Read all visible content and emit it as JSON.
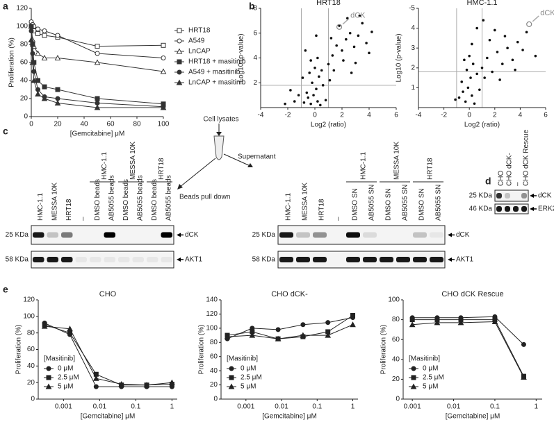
{
  "panel_labels": [
    "a",
    "b",
    "c",
    "d",
    "e"
  ],
  "chart_data": [
    {
      "type": "line",
      "x": [
        0,
        1,
        2,
        5,
        10,
        20,
        50,
        100
      ],
      "xlim": [
        0,
        100
      ],
      "xticks": [
        0,
        20,
        40,
        60,
        80,
        100
      ],
      "ylim": [
        0,
        120
      ],
      "yticks": [
        0,
        20,
        40,
        60,
        80,
        100,
        120
      ],
      "xlabel": "[Gemcitabine] μM",
      "ylabel": "Proliferation (%)",
      "legend": "right",
      "series": [
        {
          "name": "HRT18",
          "color": "#333333",
          "marker": "square",
          "filled": false,
          "values": [
            100,
            98,
            95,
            92,
            90,
            88,
            78,
            79
          ]
        },
        {
          "name": "A549",
          "color": "#333333",
          "marker": "circle",
          "filled": false,
          "values": [
            105,
            102,
            100,
            97,
            95,
            90,
            70,
            65
          ]
        },
        {
          "name": "LnCAP",
          "color": "#333333",
          "marker": "triangle",
          "filled": false,
          "values": [
            100,
            85,
            78,
            70,
            65,
            65,
            60,
            50
          ]
        },
        {
          "name": "HRT18 + masitinib",
          "color": "#333333",
          "marker": "square",
          "filled": true,
          "values": [
            100,
            80,
            60,
            40,
            33,
            30,
            20,
            14
          ]
        },
        {
          "name": "A549 + masitinib",
          "color": "#333333",
          "marker": "circle",
          "filled": true,
          "values": [
            95,
            70,
            50,
            30,
            22,
            20,
            15,
            11
          ]
        },
        {
          "name": "LnCAP + masitinib",
          "color": "#333333",
          "marker": "triangle",
          "filled": true,
          "values": [
            85,
            60,
            40,
            25,
            20,
            15,
            10,
            10
          ]
        }
      ]
    },
    {
      "type": "scatter",
      "title": "HRT18",
      "xlabel": "Log2 (ratio)",
      "ylabel": "Log10 (p-value)",
      "color": "#111111",
      "xlim": [
        -4,
        6
      ],
      "xticks": [
        -4,
        -2,
        0,
        2,
        4,
        6
      ],
      "ylim": [
        0,
        8
      ],
      "yticks": [
        2,
        4,
        6,
        {
          "value": 8,
          "label": "-8"
        }
      ],
      "ref_x": [
        -1,
        1
      ],
      "ref_y": [
        1.8
      ],
      "x": [
        -0.3,
        0.2,
        -0.1,
        0.1,
        -0.5,
        0.4,
        -0.2,
        0.3,
        -0.6,
        0.6,
        -0.4,
        0.0,
        0.5,
        -0.8,
        0.8,
        -1.2,
        -1.5,
        1.1,
        0.2,
        -0.3,
        1.0,
        1.3,
        1.6,
        2.0,
        2.3,
        2.6,
        2.1,
        2.9,
        3.2,
        3.5,
        1.8,
        2.4,
        3.0,
        3.8,
        4.2,
        1.4,
        2.7,
        4.0,
        3.3,
        1.2,
        -2.2,
        -1.8,
        -0.9,
        -0.7,
        0.1
      ],
      "y": [
        0.3,
        0.5,
        1.0,
        1.5,
        0.8,
        0.2,
        2.0,
        2.5,
        1.2,
        1.8,
        2.8,
        3.2,
        3.0,
        0.4,
        0.6,
        1.0,
        0.5,
        2.2,
        4.0,
        3.8,
        3.5,
        4.2,
        5.0,
        4.6,
        5.5,
        6.0,
        3.8,
        4.9,
        5.8,
        6.8,
        6.6,
        7.2,
        3.6,
        5.2,
        6.1,
        3.0,
        2.8,
        4.4,
        7.4,
        5.6,
        0.3,
        1.4,
        2.4,
        4.6,
        5.8
      ],
      "annotation": {
        "text": "dCK",
        "x": 1.8,
        "y": 6.5
      }
    },
    {
      "type": "scatter",
      "title": "HMC-1.1",
      "xlabel": "Log2 (ratio)",
      "ylabel": "Log10 (p-value)",
      "color": "#111111",
      "xlim": [
        -4,
        6
      ],
      "xticks": [
        -4,
        -2,
        0,
        2,
        4,
        6
      ],
      "ylim": [
        0,
        5
      ],
      "yticks": [
        1,
        2,
        3,
        4,
        {
          "value": 5,
          "label": "-5"
        }
      ],
      "ref_x": [
        -1,
        1
      ],
      "ref_y": [
        1.8
      ],
      "x": [
        -0.3,
        0.2,
        -0.1,
        0.1,
        -0.5,
        0.4,
        -0.2,
        0.3,
        -0.6,
        0.6,
        -0.8,
        0.8,
        -1.1,
        0.0,
        -0.4,
        1.0,
        1.4,
        1.8,
        2.2,
        2.6,
        3.0,
        3.4,
        3.8,
        4.2,
        1.6,
        2.0,
        2.8,
        1.2,
        3.6,
        4.5,
        0.6,
        1.1,
        2.4,
        5.2,
        0.2
      ],
      "y": [
        0.3,
        0.6,
        1.0,
        1.5,
        0.8,
        0.2,
        1.9,
        2.2,
        1.3,
        1.7,
        0.5,
        0.9,
        0.4,
        2.6,
        2.4,
        2.0,
        2.5,
        1.8,
        2.8,
        2.2,
        3.0,
        2.4,
        3.3,
        2.9,
        3.4,
        3.9,
        3.6,
        1.5,
        1.9,
        3.8,
        4.0,
        4.4,
        1.4,
        2.6,
        3.2
      ],
      "annotation": {
        "text": "dCK",
        "x": 4.7,
        "y": 4.2
      }
    },
    {
      "type": "line",
      "title": "CHO",
      "log_x": true,
      "x": [
        0.0003,
        0.0015,
        0.008,
        0.04,
        0.2,
        1
      ],
      "xlim": [
        0.0002,
        1.4
      ],
      "xticks": [
        0.001,
        0.01,
        0.1,
        1
      ],
      "ylim": [
        0,
        120
      ],
      "yticks": [
        0,
        20,
        40,
        60,
        80,
        100,
        120
      ],
      "xlabel": "[Gemcitabine] μM",
      "ylabel": "Proliferation (%)",
      "legend": "lower left",
      "legend_title": "[Masitinib]",
      "series": [
        {
          "name": "0 μM",
          "color": "#222222",
          "marker": "circle",
          "filled": true,
          "values": [
            92,
            78,
            15,
            15,
            15,
            15
          ]
        },
        {
          "name": "2.5 μM",
          "color": "#222222",
          "marker": "square",
          "filled": true,
          "values": [
            90,
            80,
            30,
            17,
            17,
            18
          ]
        },
        {
          "name": "5 μM",
          "color": "#222222",
          "marker": "triangle",
          "filled": true,
          "values": [
            88,
            85,
            25,
            18,
            17,
            20
          ]
        }
      ]
    },
    {
      "type": "line",
      "title": "CHO dCK-",
      "log_x": true,
      "x": [
        0.0003,
        0.0015,
        0.008,
        0.04,
        0.2,
        1
      ],
      "xlim": [
        0.0002,
        1.4
      ],
      "xticks": [
        0.001,
        0.01,
        0.1,
        1
      ],
      "ylim": [
        0,
        140
      ],
      "yticks": [
        0,
        20,
        40,
        60,
        80,
        100,
        120,
        140
      ],
      "xlabel": "[Gemcitabine] μM",
      "ylabel": "Proliferation (%)",
      "legend": "lower left",
      "legend_title": "[Masitinib]",
      "series": [
        {
          "name": "0 μM",
          "color": "#222222",
          "marker": "circle",
          "filled": true,
          "values": [
            85,
            100,
            98,
            105,
            108,
            115
          ]
        },
        {
          "name": "2.5 μM",
          "color": "#222222",
          "marker": "square",
          "filled": true,
          "values": [
            90,
            95,
            85,
            88,
            95,
            118
          ]
        },
        {
          "name": "5 μM",
          "color": "#222222",
          "marker": "triangle",
          "filled": true,
          "values": [
            88,
            90,
            85,
            90,
            90,
            105
          ]
        }
      ]
    },
    {
      "type": "line",
      "title": "CHO dCK Rescue",
      "log_x": true,
      "x": [
        0.001,
        0.004,
        0.015,
        0.1,
        0.5
      ],
      "xlim": [
        0.0006,
        1.4
      ],
      "xticks": [
        0.001,
        0.01,
        0.1,
        1
      ],
      "ylim": [
        0,
        100
      ],
      "yticks": [
        0,
        20,
        40,
        60,
        80,
        100
      ],
      "xlabel": "[Gemcitabine] μM",
      "ylabel": "Proliferation (%)",
      "legend": "lower left",
      "legend_title": "[Masitinib]",
      "series": [
        {
          "name": "0 μM",
          "color": "#222222",
          "marker": "circle",
          "filled": true,
          "values": [
            82,
            82,
            82,
            83,
            55
          ]
        },
        {
          "name": "2.5 μM",
          "color": "#222222",
          "marker": "square",
          "filled": true,
          "values": [
            80,
            80,
            80,
            80,
            23
          ]
        },
        {
          "name": "5 μM",
          "color": "#222222",
          "marker": "triangle",
          "filled": true,
          "values": [
            75,
            77,
            77,
            78,
            22
          ]
        }
      ]
    }
  ],
  "blots": {
    "c_left": {
      "lanes": [
        "HMC-1.1",
        "MESSA 10K",
        "HRT18",
        "–",
        "DMSO beads",
        "AB5055 beads",
        "DMSO beads",
        "AB5055 beads",
        "DMSO beads",
        "AB5055 beads"
      ],
      "groups": [
        "HMC-1.1",
        "MESSA 10K",
        "HRT18"
      ],
      "markers": [
        "25 KDa",
        "58 KDa"
      ],
      "proteins": [
        "dCK",
        "AKT1"
      ]
    },
    "c_right": {
      "lanes": [
        "HMC-1.1",
        "MESSA 10K",
        "HRT18",
        "–",
        "DMSO SN",
        "AB5055 SN",
        "DMSO SN",
        "AB5055 SN",
        "DMSO SN",
        "AB5055 SN"
      ],
      "groups": [
        "HMC-1.1",
        "MESSA 10K",
        "HRT18"
      ],
      "markers": [
        "25 KDa",
        "58 KDa"
      ],
      "proteins": [
        "dCK",
        "AKT1"
      ]
    },
    "d": {
      "lanes": [
        "CHO",
        "CHO dCK-",
        "–",
        "CHO dCK Rescue"
      ],
      "markers": [
        "25 KDa",
        "46 KDa"
      ],
      "proteins": [
        "dCK",
        "ERK2"
      ]
    }
  },
  "diagram": {
    "top": "Cell lysates",
    "right": "Supernatant",
    "left": "Beads pull down"
  }
}
